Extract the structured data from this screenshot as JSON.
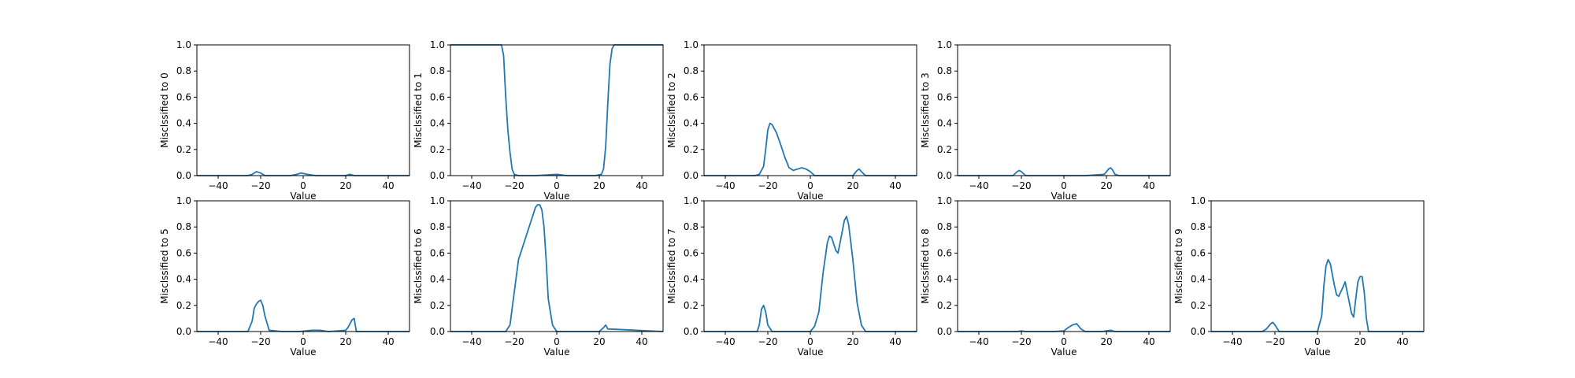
{
  "chart_data": {
    "type": "line",
    "layout": "2x5 grid of small-multiple line plots",
    "series_color": "#1f77b4",
    "xlim": [
      -50,
      50
    ],
    "ylim": [
      0,
      1
    ],
    "xticks": [
      -40,
      -20,
      0,
      20,
      40
    ],
    "yticks": [
      0.0,
      0.2,
      0.4,
      0.6,
      0.8,
      1.0
    ],
    "xtick_labels": [
      "−40",
      "−20",
      "0",
      "20",
      "40"
    ],
    "ytick_labels": [
      "0.0",
      "0.2",
      "0.4",
      "0.6",
      "0.8",
      "1.0"
    ],
    "grid": false,
    "panels": [
      {
        "xlabel": "Value",
        "ylabel": "Misclssified to 0",
        "x": [
          -50,
          -26,
          -24,
          -22,
          -20,
          -18,
          -6,
          -3,
          -1,
          2,
          6,
          20,
          22,
          24,
          50
        ],
        "y": [
          0,
          0,
          0.01,
          0.03,
          0.02,
          0,
          0,
          0.01,
          0.02,
          0.01,
          0,
          0,
          0.01,
          0,
          0
        ]
      },
      {
        "xlabel": "Value",
        "ylabel": "Misclssified to 1",
        "x": [
          -50,
          -27,
          -26,
          -25,
          -24,
          -23,
          -22,
          -21,
          -20,
          -18,
          -10,
          0,
          5,
          10,
          18,
          21,
          22,
          23,
          24,
          25,
          26,
          27,
          50
        ],
        "y": [
          1,
          1,
          1,
          0.92,
          0.6,
          0.35,
          0.18,
          0.05,
          0.01,
          0,
          0,
          0.01,
          0,
          0,
          0,
          0.01,
          0.05,
          0.22,
          0.55,
          0.85,
          0.97,
          1,
          1
        ]
      },
      {
        "xlabel": "Value",
        "ylabel": "Misclssified to 2",
        "x": [
          -50,
          -26,
          -24,
          -22,
          -21,
          -20,
          -19,
          -18,
          -16,
          -14,
          -12,
          -10,
          -8,
          -6,
          -4,
          -2,
          0,
          2,
          20,
          21,
          22,
          23,
          24,
          26,
          50
        ],
        "y": [
          0,
          0,
          0.01,
          0.07,
          0.2,
          0.35,
          0.4,
          0.39,
          0.33,
          0.24,
          0.14,
          0.06,
          0.04,
          0.05,
          0.06,
          0.05,
          0.03,
          0,
          0,
          0.02,
          0.04,
          0.05,
          0.03,
          0,
          0
        ]
      },
      {
        "xlabel": "Value",
        "ylabel": "Misclssified to 3",
        "x": [
          -50,
          -24,
          -22,
          -21,
          -20,
          -18,
          10,
          15,
          19,
          20,
          21,
          22,
          23,
          24,
          26,
          50
        ],
        "y": [
          0,
          0,
          0.03,
          0.04,
          0.03,
          0,
          0,
          0.005,
          0.01,
          0.03,
          0.05,
          0.06,
          0.04,
          0.01,
          0,
          0
        ]
      },
      {
        "xlabel": "Value",
        "ylabel": "Misclssified to 5",
        "x": [
          -50,
          -26,
          -24,
          -23,
          -22,
          -21,
          -20,
          -19,
          -18,
          -16,
          -10,
          -2,
          4,
          8,
          12,
          20,
          21,
          22,
          23,
          24,
          25,
          50
        ],
        "y": [
          0,
          0,
          0.08,
          0.18,
          0.21,
          0.23,
          0.24,
          0.2,
          0.12,
          0.01,
          0,
          0,
          0.01,
          0.01,
          0,
          0.01,
          0.03,
          0.06,
          0.09,
          0.1,
          0,
          0
        ]
      },
      {
        "xlabel": "Value",
        "ylabel": "Misclssified to 6",
        "x": [
          -50,
          -24,
          -22,
          -20,
          -18,
          -16,
          -14,
          -12,
          -10,
          -9,
          -8,
          -7,
          -6,
          -5,
          -4,
          -2,
          0,
          20,
          22,
          23,
          24,
          50
        ],
        "y": [
          0,
          0,
          0.05,
          0.3,
          0.55,
          0.65,
          0.75,
          0.85,
          0.95,
          0.97,
          0.97,
          0.93,
          0.8,
          0.55,
          0.25,
          0.05,
          0,
          0,
          0.03,
          0.05,
          0.02,
          0
        ]
      },
      {
        "xlabel": "Value",
        "ylabel": "Misclssified to 7",
        "x": [
          -50,
          -25,
          -24,
          -23,
          -22,
          -21,
          -20,
          -18,
          0,
          2,
          4,
          6,
          8,
          9,
          10,
          12,
          13,
          14,
          16,
          17,
          18,
          20,
          22,
          24,
          26,
          50
        ],
        "y": [
          0,
          0,
          0.05,
          0.17,
          0.2,
          0.15,
          0.05,
          0,
          0,
          0.04,
          0.15,
          0.45,
          0.68,
          0.73,
          0.72,
          0.62,
          0.6,
          0.68,
          0.85,
          0.88,
          0.82,
          0.55,
          0.22,
          0.05,
          0,
          0
        ]
      },
      {
        "xlabel": "Value",
        "ylabel": "Misclssified to 8",
        "x": [
          -50,
          -22,
          -20,
          -18,
          -5,
          0,
          2,
          4,
          6,
          8,
          10,
          18,
          20,
          22,
          24,
          50
        ],
        "y": [
          0,
          0,
          0.005,
          0,
          0,
          0.005,
          0.03,
          0.05,
          0.06,
          0.02,
          0,
          0,
          0.005,
          0.01,
          0,
          0
        ]
      },
      {
        "xlabel": "Value",
        "ylabel": "Misclssified to 9",
        "x": [
          -50,
          -26,
          -24,
          -22,
          -21,
          -20,
          -18,
          0,
          2,
          3,
          4,
          5,
          6,
          8,
          9,
          10,
          12,
          13,
          14,
          16,
          17,
          18,
          19,
          20,
          21,
          22,
          23,
          24,
          50
        ],
        "y": [
          0,
          0,
          0.02,
          0.06,
          0.07,
          0.05,
          0,
          0,
          0.12,
          0.35,
          0.5,
          0.55,
          0.52,
          0.35,
          0.28,
          0.27,
          0.34,
          0.38,
          0.3,
          0.14,
          0.11,
          0.25,
          0.38,
          0.42,
          0.42,
          0.3,
          0.1,
          0,
          0
        ]
      }
    ]
  }
}
